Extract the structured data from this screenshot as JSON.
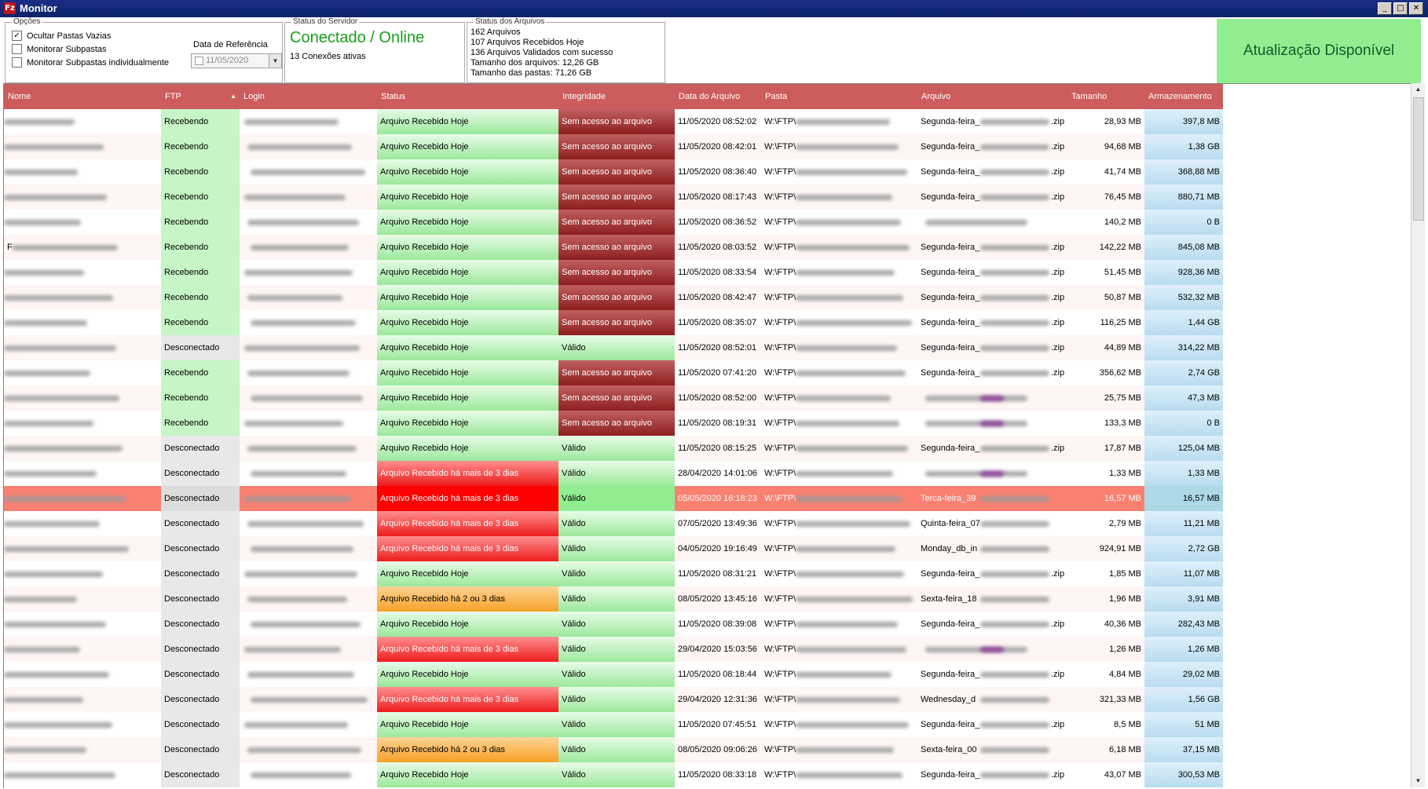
{
  "window": {
    "title": "Monitor",
    "icon": "filezilla-icon",
    "minimize": "_",
    "maximize": "□",
    "close": "✕"
  },
  "options": {
    "legend": "Opções",
    "checkboxes": [
      {
        "label": "Ocultar Pastas Vazias",
        "checked": true
      },
      {
        "label": "Monitorar Subpastas",
        "checked": false
      },
      {
        "label": "Monitorar Subpastas individualmente",
        "checked": false
      }
    ],
    "ref_date_label": "Data de Referência",
    "ref_date_value": "11/05/2020"
  },
  "server_status": {
    "legend": "Status do Servidor",
    "status": "Conectado / Online",
    "connections": "13 Conexões ativas"
  },
  "files_status": {
    "legend": "Status dos Arquivos",
    "lines": [
      "162 Arquivos",
      "107 Arquivos Recebidos Hoje",
      "136 Arquivos Validados com sucesso",
      "Tamanho dos arquivos: 12,26 GB",
      "Tamanho das pastas: 71,26 GB"
    ]
  },
  "update_banner": "Atualização Disponível",
  "colors": {
    "header": "#cd5c5c",
    "update_bg": "#90ee90",
    "online": "#1aa019",
    "selected_row": "#fa8072"
  },
  "columns": [
    "Nome",
    "FTP",
    "Login",
    "Status",
    "Integridade",
    "Data do Arquivo",
    "Pasta",
    "Arquivo",
    "Tamanho",
    "Armazenamento"
  ],
  "rows": [
    {
      "ftp": "Recebendo",
      "status": "Arquivo Recebido Hoje",
      "integridade": "Sem acesso ao arquivo",
      "data": "11/05/2020 08:52:02",
      "pasta": "W:\\FTP\\",
      "arquivo": "Segunda-feira_",
      "ext": ".zip",
      "tamanho": "28,93 MB",
      "armazenamento": "397,8 MB"
    },
    {
      "ftp": "Recebendo",
      "status": "Arquivo Recebido Hoje",
      "integridade": "Sem acesso ao arquivo",
      "data": "11/05/2020 08:42:01",
      "pasta": "W:\\FTP\\",
      "arquivo": "Segunda-feira_",
      "ext": ".zip",
      "tamanho": "94,68 MB",
      "armazenamento": "1,38 GB"
    },
    {
      "ftp": "Recebendo",
      "status": "Arquivo Recebido Hoje",
      "integridade": "Sem acesso ao arquivo",
      "data": "11/05/2020 08:36:40",
      "pasta": "W:\\FTP\\",
      "arquivo": "Segunda-feira_",
      "ext": ".zip",
      "tamanho": "41,74 MB",
      "armazenamento": "368,88 MB"
    },
    {
      "ftp": "Recebendo",
      "status": "Arquivo Recebido Hoje",
      "integridade": "Sem acesso ao arquivo",
      "data": "11/05/2020 08:17:43",
      "pasta": "W:\\FTP\\",
      "arquivo": "Segunda-feira_",
      "ext": ".zip",
      "tamanho": "76,45 MB",
      "armazenamento": "880,71 MB"
    },
    {
      "ftp": "Recebendo",
      "status": "Arquivo Recebido Hoje",
      "integridade": "Sem acesso ao arquivo",
      "data": "11/05/2020 08:36:52",
      "pasta": "W:\\FTP\\",
      "arquivo": "",
      "ext": "",
      "tamanho": "140,2 MB",
      "armazenamento": "0 B"
    },
    {
      "nome": "F",
      "ftp": "Recebendo",
      "status": "Arquivo Recebido Hoje",
      "integridade": "Sem acesso ao arquivo",
      "data": "11/05/2020 08:03:52",
      "pasta": "W:\\FTP\\",
      "arquivo": "Segunda-feira_",
      "ext": ".zip",
      "tamanho": "142,22 MB",
      "armazenamento": "845,08 MB"
    },
    {
      "ftp": "Recebendo",
      "status": "Arquivo Recebido Hoje",
      "integridade": "Sem acesso ao arquivo",
      "data": "11/05/2020 08:33:54",
      "pasta": "W:\\FTP\\",
      "arquivo": "Segunda-feira_",
      "ext": ".zip",
      "tamanho": "51,45 MB",
      "armazenamento": "928,36 MB"
    },
    {
      "ftp": "Recebendo",
      "status": "Arquivo Recebido Hoje",
      "integridade": "Sem acesso ao arquivo",
      "data": "11/05/2020 08:42:47",
      "pasta": "W:\\FTP\\",
      "arquivo": "Segunda-feira_",
      "ext": ".zip",
      "tamanho": "50,87 MB",
      "armazenamento": "532,32 MB"
    },
    {
      "ftp": "Recebendo",
      "status": "Arquivo Recebido Hoje",
      "integridade": "Sem acesso ao arquivo",
      "data": "11/05/2020 08:35:07",
      "pasta": "W:\\FTP\\",
      "arquivo": "Segunda-feira_",
      "ext": ".zip",
      "tamanho": "116,25 MB",
      "armazenamento": "1,44 GB"
    },
    {
      "ftp": "Desconectado",
      "status": "Arquivo Recebido Hoje",
      "integridade": "Válido",
      "data": "11/05/2020 08:52:01",
      "pasta": "W:\\FTP\\",
      "arquivo": "Segunda-feira_",
      "ext": ".zip",
      "tamanho": "44,89 MB",
      "armazenamento": "314,22 MB"
    },
    {
      "ftp": "Recebendo",
      "status": "Arquivo Recebido Hoje",
      "integridade": "Sem acesso ao arquivo",
      "data": "11/05/2020 07:41:20",
      "pasta": "W:\\FTP\\",
      "arquivo": "Segunda-feira_",
      "ext": ".zip",
      "tamanho": "356,62 MB",
      "armazenamento": "2,74 GB"
    },
    {
      "ftp": "Recebendo",
      "status": "Arquivo Recebido Hoje",
      "integridade": "Sem acesso ao arquivo",
      "data": "11/05/2020 08:52:00",
      "pasta": "W:\\FTP\\",
      "arquivo": "",
      "ext": "",
      "tamanho": "25,75 MB",
      "armazenamento": "47,3 MB",
      "purple": true
    },
    {
      "ftp": "Recebendo",
      "status": "Arquivo Recebido Hoje",
      "integridade": "Sem acesso ao arquivo",
      "data": "11/05/2020 08:19:31",
      "pasta": "W:\\FTP\\",
      "arquivo": "",
      "ext": "",
      "tamanho": "133,3 MB",
      "armazenamento": "0 B",
      "purple": true
    },
    {
      "ftp": "Desconectado",
      "status": "Arquivo Recebido Hoje",
      "integridade": "Válido",
      "data": "11/05/2020 08:15:25",
      "pasta": "W:\\FTP\\",
      "arquivo": "Segunda-feira_",
      "ext": ".zip",
      "tamanho": "17,87 MB",
      "armazenamento": "125,04 MB"
    },
    {
      "ftp": "Desconectado",
      "status": "Arquivo Recebido há mais de 3 dias",
      "integridade": "Válido",
      "data": "28/04/2020 14:01:06",
      "pasta": "W:\\FTP\\",
      "arquivo": "",
      "ext": "",
      "tamanho": "1,33 MB",
      "armazenamento": "1,33 MB",
      "purple": true
    },
    {
      "ftp": "Desconectado",
      "status": "Arquivo Recebido há mais de 3 dias",
      "integridade": "Válido",
      "data": "05/05/2020 16:18:23",
      "pasta": "W:\\FTP\\",
      "arquivo": "Terca-feira_39",
      "ext": "",
      "tamanho": "16,57 MB",
      "armazenamento": "16,57 MB",
      "selected": true
    },
    {
      "ftp": "Desconectado",
      "status": "Arquivo Recebido há mais de 3 dias",
      "integridade": "Válido",
      "data": "07/05/2020 13:49:36",
      "pasta": "W:\\FTP\\",
      "arquivo": "Quinta-feira_07",
      "ext": "",
      "tamanho": "2,79 MB",
      "armazenamento": "11,21 MB"
    },
    {
      "ftp": "Desconectado",
      "status": "Arquivo Recebido há mais de 3 dias",
      "integridade": "Válido",
      "data": "04/05/2020 19:16:49",
      "pasta": "W:\\FTP\\",
      "arquivo": "Monday_db_in",
      "ext": "",
      "tamanho": "924,91 MB",
      "armazenamento": "2,72 GB"
    },
    {
      "ftp": "Desconectado",
      "status": "Arquivo Recebido Hoje",
      "integridade": "Válido",
      "data": "11/05/2020 08:31:21",
      "pasta": "W:\\FTP\\",
      "arquivo": "Segunda-feira_",
      "ext": ".zip",
      "tamanho": "1,85 MB",
      "armazenamento": "11,07 MB"
    },
    {
      "ftp": "Desconectado",
      "status": "Arquivo Recebido há 2 ou 3 dias",
      "integridade": "Válido",
      "data": "08/05/2020 13:45:16",
      "pasta": "W:\\FTP\\",
      "arquivo": "Sexta-feira_18",
      "ext": "",
      "tamanho": "1,96 MB",
      "armazenamento": "3,91 MB"
    },
    {
      "ftp": "Desconectado",
      "status": "Arquivo Recebido Hoje",
      "integridade": "Válido",
      "data": "11/05/2020 08:39:08",
      "pasta": "W:\\FTP\\",
      "arquivo": "Segunda-feira_",
      "ext": ".zip",
      "tamanho": "40,36 MB",
      "armazenamento": "282,43 MB"
    },
    {
      "ftp": "Desconectado",
      "status": "Arquivo Recebido há mais de 3 dias",
      "integridade": "Válido",
      "data": "29/04/2020 15:03:56",
      "pasta": "W:\\FTP\\",
      "arquivo": "",
      "ext": "",
      "tamanho": "1,26 MB",
      "armazenamento": "1,26 MB",
      "purple": true
    },
    {
      "ftp": "Desconectado",
      "status": "Arquivo Recebido Hoje",
      "integridade": "Válido",
      "data": "11/05/2020 08:18:44",
      "pasta": "W:\\FTP\\",
      "arquivo": "Segunda-feira_",
      "ext": ".zip",
      "tamanho": "4,84 MB",
      "armazenamento": "29,02 MB"
    },
    {
      "ftp": "Desconectado",
      "status": "Arquivo Recebido há mais de 3 dias",
      "integridade": "Válido",
      "data": "29/04/2020 12:31:36",
      "pasta": "W:\\FTP\\",
      "arquivo": "Wednesday_d",
      "ext": "",
      "tamanho": "321,33 MB",
      "armazenamento": "1,56 GB"
    },
    {
      "ftp": "Desconectado",
      "status": "Arquivo Recebido Hoje",
      "integridade": "Válido",
      "data": "11/05/2020 07:45:51",
      "pasta": "W:\\FTP\\",
      "arquivo": "Segunda-feira_",
      "ext": ".zip",
      "tamanho": "8,5 MB",
      "armazenamento": "51 MB"
    },
    {
      "ftp": "Desconectado",
      "status": "Arquivo Recebido há 2 ou 3 dias",
      "integridade": "Válido",
      "data": "08/05/2020 09:06:26",
      "pasta": "W:\\FTP\\",
      "arquivo": "Sexta-feira_00",
      "ext": "",
      "tamanho": "6,18 MB",
      "armazenamento": "37,15 MB"
    },
    {
      "ftp": "Desconectado",
      "status": "Arquivo Recebido Hoje",
      "integridade": "Válido",
      "data": "11/05/2020 08:33:18",
      "pasta": "W:\\FTP\\",
      "arquivo": "Segunda-feira_",
      "ext": ".zip",
      "tamanho": "43,07 MB",
      "armazenamento": "300,53 MB"
    }
  ]
}
